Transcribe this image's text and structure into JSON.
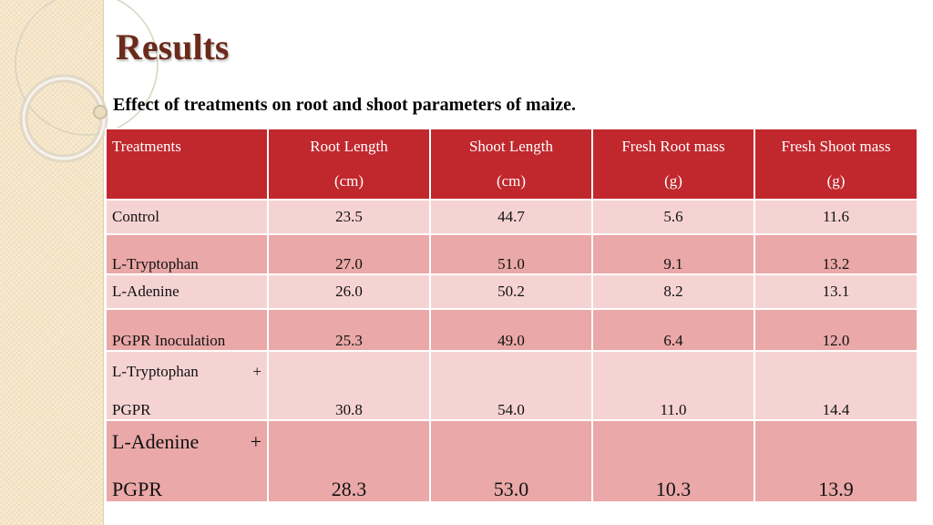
{
  "title": "Results",
  "subtitle": "Effect of treatments on root and shoot parameters of maize.",
  "table": {
    "headers": [
      {
        "line1": "Treatments",
        "line2": ""
      },
      {
        "line1": "Root Length",
        "line2": "(cm)"
      },
      {
        "line1": "Shoot Length",
        "line2": "(cm)"
      },
      {
        "line1": "Fresh Root mass",
        "line2": "(g)"
      },
      {
        "line1": "Fresh Shoot mass",
        "line2": "(g)"
      }
    ],
    "rows": [
      {
        "name": "Control",
        "values": [
          "23.5",
          "44.7",
          "5.6",
          "11.6"
        ]
      },
      {
        "name": "L-Tryptophan",
        "values": [
          "27.0",
          "51.0",
          "9.1",
          "13.2"
        ]
      },
      {
        "name": "L-Adenine",
        "values": [
          "26.0",
          "50.2",
          "8.2",
          "13.1"
        ]
      },
      {
        "name": "PGPR Inoculation",
        "values": [
          "25.3",
          "49.0",
          "6.4",
          "12.0"
        ]
      },
      {
        "name_a": "L-Tryptophan",
        "plus": "+",
        "name_b": "PGPR",
        "values": [
          "30.8",
          "54.0",
          "11.0",
          "14.4"
        ]
      },
      {
        "name_a": "L-Adenine",
        "plus": "+",
        "name_b": "PGPR",
        "values": [
          "28.3",
          "53.0",
          "10.3",
          "13.9"
        ]
      }
    ]
  },
  "colors": {
    "header_bg": "#c0282d",
    "row_light": "#f6d3d3",
    "row_dark": "#eaa8a8",
    "title": "#6b2a1a",
    "sidebar": "#f6e6c8"
  }
}
